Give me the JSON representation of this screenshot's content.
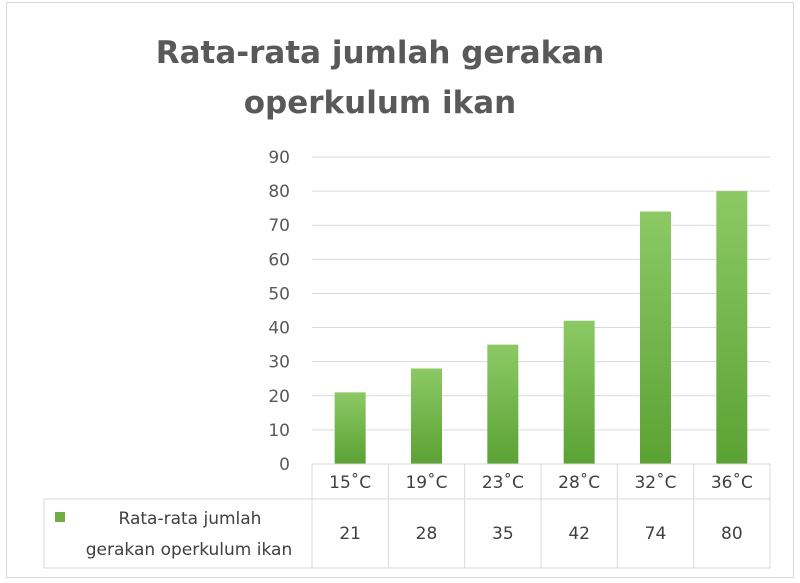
{
  "chart_data": {
    "type": "bar",
    "title": "Rata-rata jumlah gerakan\noperkulum ikan",
    "categories": [
      "15˚C",
      "19˚C",
      "23˚C",
      "28˚C",
      "32˚C",
      "36˚C"
    ],
    "series": [
      {
        "name": "Rata-rata jumlah gerakan operkulum ikan",
        "values": [
          21,
          28,
          35,
          42,
          74,
          80
        ]
      }
    ],
    "series_label_lines": [
      "Rata-rata jumlah",
      "gerakan operkulum ikan"
    ],
    "yticks": [
      0,
      10,
      20,
      30,
      40,
      50,
      60,
      70,
      80,
      90
    ],
    "ylim": [
      0,
      90
    ],
    "grid": true,
    "legend": "data-table",
    "colors": {
      "bar_top": "#8cc965",
      "bar_bottom": "#5ba234",
      "legend_key": "#70ad47"
    }
  }
}
